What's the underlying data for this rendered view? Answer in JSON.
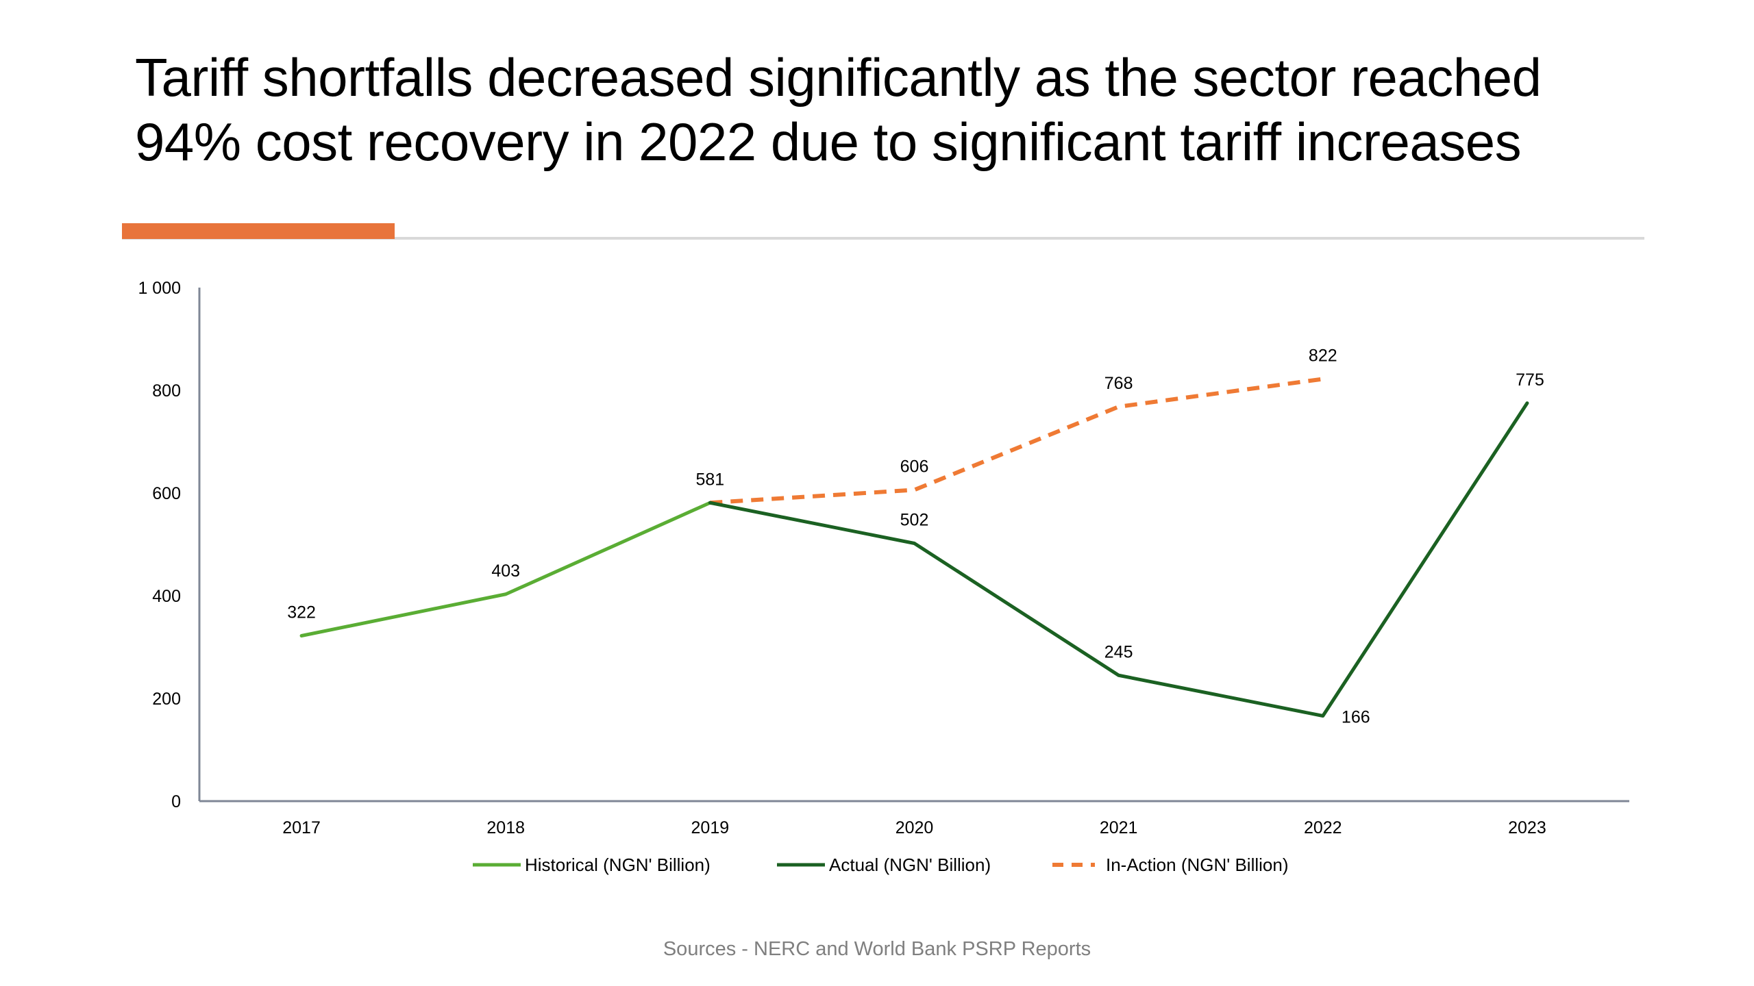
{
  "title": {
    "line1": "Tariff shortfalls decreased significantly as the sector reached",
    "line2": "94% cost recovery in 2022 due to significant tariff increases"
  },
  "source": "Sources - NERC and World Bank PSRP Reports",
  "colors": {
    "accent": "#e8743b",
    "historical": "#5aad34",
    "actual": "#1b6122",
    "inaction": "#ef7a34",
    "axis": "#7f8796",
    "rule": "#d9d9d9"
  },
  "chart_data": {
    "type": "line",
    "categories": [
      "2017",
      "2018",
      "2019",
      "2020",
      "2021",
      "2022",
      "2023"
    ],
    "ylim": [
      0,
      1000
    ],
    "yticks": [
      0,
      200,
      400,
      600,
      800,
      1000
    ],
    "ytick_labels": [
      "0",
      "200",
      "400",
      "600",
      "800",
      "1 000"
    ],
    "grid": false,
    "legend_position": "bottom",
    "series": [
      {
        "name": "Historical (NGN' Billion)",
        "key": "historical",
        "style": "solid",
        "values": [
          322,
          403,
          581,
          null,
          null,
          null,
          null
        ],
        "labels": [
          "322",
          "403",
          "581",
          null,
          null,
          null,
          null
        ]
      },
      {
        "name": "Actual (NGN' Billion)",
        "key": "actual",
        "style": "solid",
        "values": [
          null,
          null,
          581,
          502,
          245,
          166,
          775
        ],
        "labels": [
          null,
          null,
          null,
          "502",
          "245",
          "166",
          "775"
        ]
      },
      {
        "name": "In-Action (NGN' Billion)",
        "key": "inaction",
        "style": "dashed",
        "values": [
          null,
          null,
          581,
          606,
          768,
          822,
          null
        ],
        "labels": [
          null,
          null,
          null,
          "606",
          "768",
          "822",
          null
        ]
      }
    ]
  }
}
